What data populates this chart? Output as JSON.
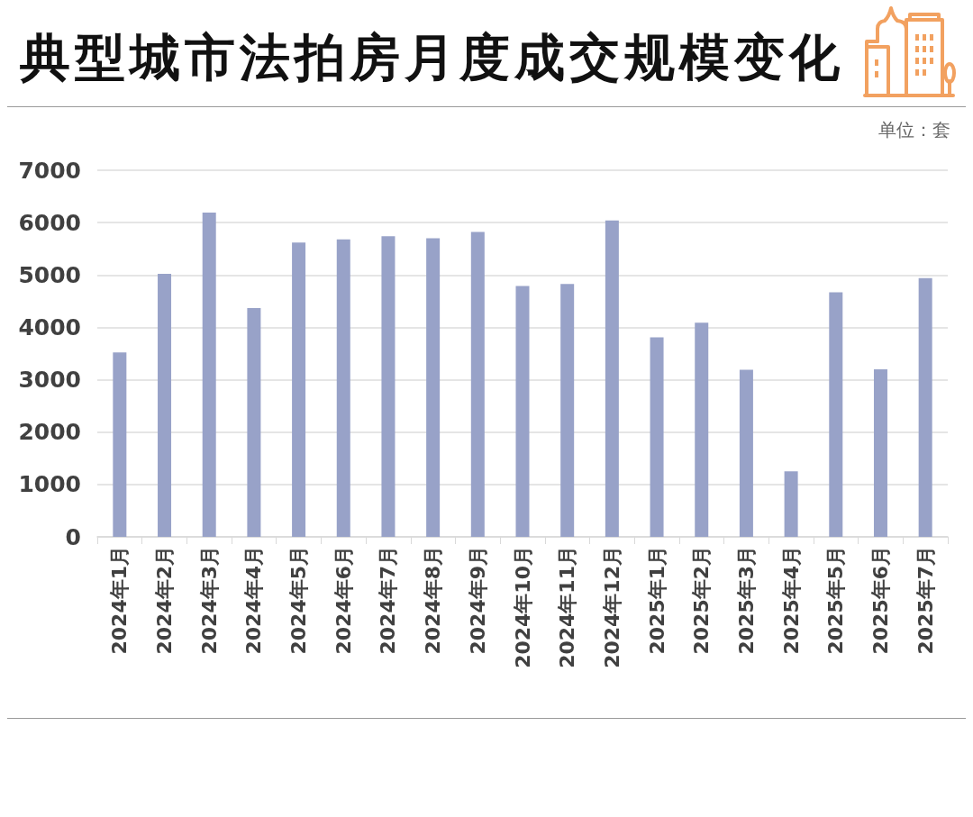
{
  "chart_data": {
    "type": "bar",
    "title": "典型城市法拍房月度成交规模变化",
    "annotations": [
      "单位：套"
    ],
    "categories": [
      "2024年1月",
      "2024年2月",
      "2024年3月",
      "2024年4月",
      "2024年5月",
      "2024年6月",
      "2024年7月",
      "2024年8月",
      "2024年9月",
      "2024年10月",
      "2024年11月",
      "2024年12月",
      "2025年1月",
      "2025年2月",
      "2025年3月",
      "2025年4月",
      "2025年5月",
      "2025年6月",
      "2025年7月"
    ],
    "values": [
      3520,
      5020,
      6190,
      4370,
      5620,
      5680,
      5740,
      5700,
      5820,
      4790,
      4830,
      6040,
      3810,
      4090,
      3190,
      1250,
      4670,
      3200,
      4940
    ],
    "color": "#98a2c8",
    "ylim": [
      0,
      7000
    ],
    "yticks": [
      0,
      1000,
      2000,
      3000,
      4000,
      5000,
      6000,
      7000
    ],
    "grid": "y"
  }
}
